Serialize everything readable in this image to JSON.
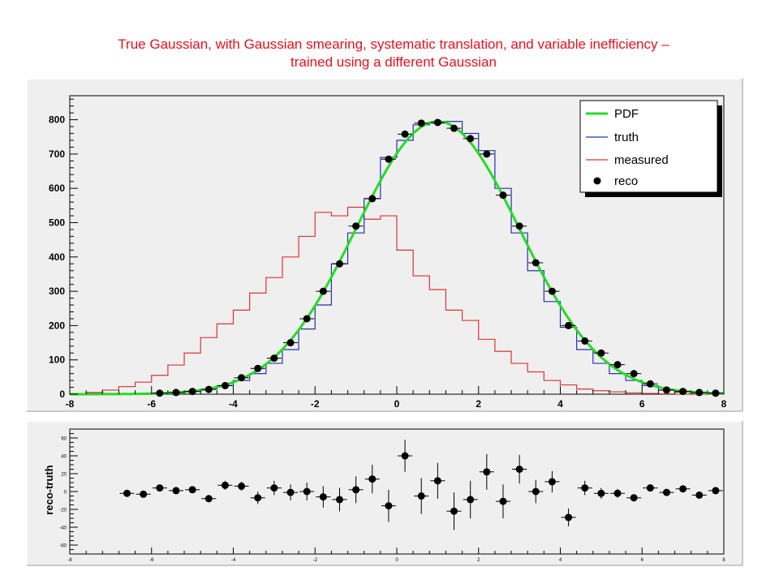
{
  "title": {
    "line1": "True Gaussian, with Gaussian smearing, systematic translation, and variable inefficiency –",
    "line2": "trained using a different Gaussian"
  },
  "colors": {
    "title": "#e8101e",
    "pdf": "#22dd22",
    "truth": "#2233aa",
    "measured": "#dd3333",
    "reco": "#000000",
    "frame": "#efefef"
  },
  "chart_data": [
    {
      "type": "line",
      "xlim": [
        -8,
        8
      ],
      "ylim": [
        0,
        870
      ],
      "x_ticks": [
        -8,
        -6,
        -4,
        -2,
        0,
        2,
        4,
        6,
        8
      ],
      "y_ticks": [
        0,
        100,
        200,
        300,
        400,
        500,
        600,
        700,
        800
      ],
      "legend_position": "top-right",
      "legend": [
        {
          "label": "PDF",
          "kind": "line",
          "color": "#22dd22"
        },
        {
          "label": "truth",
          "kind": "hist",
          "color": "#2233aa"
        },
        {
          "label": "measured",
          "kind": "hist",
          "color": "#dd3333"
        },
        {
          "label": "reco",
          "kind": "marker",
          "color": "#000000"
        }
      ],
      "pdf": {
        "mean": 1.0,
        "sigma": 2.0,
        "amplitude": 795
      },
      "bin_edges": [
        -8,
        -7.6,
        -7.2,
        -6.8,
        -6.4,
        -6,
        -5.6,
        -5.2,
        -4.8,
        -4.4,
        -4,
        -3.6,
        -3.2,
        -2.8,
        -2.4,
        -2,
        -1.6,
        -1.2,
        -0.8,
        -0.4,
        0,
        0.4,
        0.8,
        1.2,
        1.6,
        2,
        2.4,
        2.8,
        3.2,
        3.6,
        4,
        4.4,
        4.8,
        5.2,
        5.6,
        6,
        6.4,
        6.8,
        7.2,
        7.6,
        8
      ],
      "series": [
        {
          "name": "truth",
          "values": [
            0,
            0,
            0,
            0,
            0,
            2,
            5,
            8,
            15,
            25,
            40,
            60,
            90,
            130,
            190,
            260,
            380,
            470,
            570,
            690,
            740,
            785,
            790,
            795,
            760,
            710,
            600,
            470,
            360,
            270,
            195,
            130,
            90,
            60,
            40,
            25,
            12,
            6,
            3,
            1
          ]
        },
        {
          "name": "measured",
          "values": [
            2,
            5,
            12,
            22,
            35,
            55,
            85,
            120,
            165,
            205,
            245,
            295,
            340,
            400,
            460,
            530,
            520,
            545,
            510,
            520,
            420,
            345,
            305,
            245,
            215,
            160,
            125,
            90,
            65,
            40,
            27,
            15,
            10,
            7,
            4,
            2,
            1,
            0,
            0,
            0
          ]
        },
        {
          "name": "reco",
          "x": [
            -5.8,
            -5.4,
            -5.0,
            -4.6,
            -4.2,
            -3.8,
            -3.4,
            -3.0,
            -2.6,
            -2.2,
            -1.8,
            -1.4,
            -1.0,
            -0.6,
            -0.2,
            0.2,
            0.6,
            1.0,
            1.4,
            1.8,
            2.2,
            2.6,
            3.0,
            3.4,
            3.8,
            4.2,
            4.6,
            5.0,
            5.4,
            5.8,
            6.2,
            6.6,
            7.0,
            7.4,
            7.8
          ],
          "values": [
            3,
            5,
            8,
            14,
            25,
            48,
            75,
            105,
            150,
            220,
            300,
            380,
            490,
            570,
            685,
            758,
            790,
            792,
            775,
            745,
            700,
            580,
            490,
            383,
            300,
            200,
            155,
            120,
            86,
            60,
            30,
            12,
            8,
            5,
            3
          ]
        }
      ]
    },
    {
      "type": "scatter",
      "ylabel": "reco-truth",
      "xlim": [
        -8,
        8
      ],
      "ylim": [
        -70,
        70
      ],
      "x_ticks": [
        -8,
        -6,
        -4,
        -2,
        0,
        2,
        4,
        6,
        8
      ],
      "y_ticks": [
        -60,
        -40,
        -20,
        0,
        20,
        40,
        60
      ],
      "x": [
        -6.6,
        -6.2,
        -5.8,
        -5.4,
        -5.0,
        -4.6,
        -4.2,
        -3.8,
        -3.4,
        -3.0,
        -2.6,
        -2.2,
        -1.8,
        -1.4,
        -1.0,
        -0.6,
        -0.2,
        0.2,
        0.6,
        1.0,
        1.4,
        1.8,
        2.2,
        2.6,
        3.0,
        3.4,
        3.8,
        4.2,
        4.6,
        5.0,
        5.4,
        5.8,
        6.2,
        6.6,
        7.0,
        7.4,
        7.8
      ],
      "values": [
        -2,
        -3,
        4,
        1,
        2,
        -8,
        7,
        6,
        -7,
        4,
        -1,
        0,
        -6,
        -9,
        2,
        14,
        -16,
        40,
        -5,
        12,
        -22,
        -9,
        22,
        -11,
        25,
        0,
        11,
        -29,
        4,
        -2,
        -2,
        -7,
        4,
        -1,
        3,
        -4,
        1
      ],
      "errors": [
        3,
        3,
        3,
        3,
        3,
        4,
        5,
        5,
        7,
        8,
        9,
        10,
        12,
        13,
        15,
        16,
        18,
        18,
        20,
        20,
        21,
        21,
        20,
        19,
        16,
        13,
        12,
        10,
        8,
        6,
        5,
        4,
        4,
        3,
        3,
        2,
        2
      ]
    }
  ]
}
